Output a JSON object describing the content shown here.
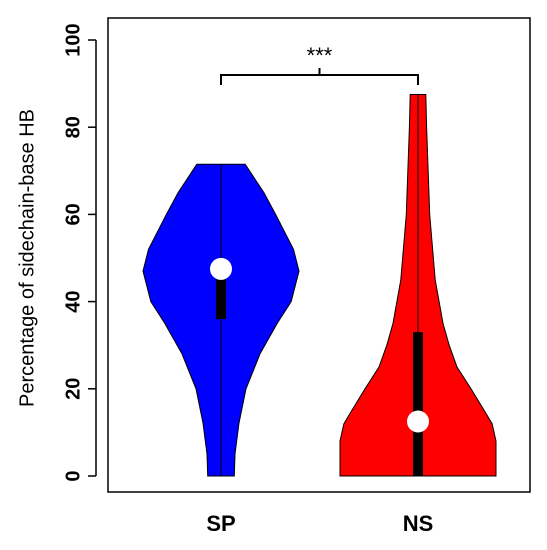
{
  "chart_data": {
    "type": "violin",
    "ylabel": "Percentage of sidechain-base HB",
    "ylim": [
      0,
      100
    ],
    "yticks": [
      0,
      20,
      40,
      60,
      80,
      100
    ],
    "categories": [
      "SP",
      "NS"
    ],
    "annotation": "***",
    "series": [
      {
        "name": "SP",
        "color": "#0000ff",
        "min": 0,
        "q1": 36,
        "median": 47.5,
        "q3": 49,
        "max": 71.5,
        "density": {
          "y": [
            0,
            5,
            12,
            20,
            28,
            35,
            40,
            47,
            52,
            60,
            65,
            71.5
          ],
          "width": [
            0.17,
            0.18,
            0.23,
            0.32,
            0.5,
            0.72,
            0.9,
            1.0,
            0.93,
            0.7,
            0.55,
            0.31
          ]
        }
      },
      {
        "name": "NS",
        "color": "#ff0000",
        "min": 0,
        "q1": 0,
        "median": 12.5,
        "q3": 33,
        "max": 87.5,
        "density": {
          "y": [
            0,
            3,
            8,
            12,
            15,
            20,
            25,
            30,
            35,
            45,
            60,
            80,
            87.5
          ],
          "width": [
            1.0,
            1.0,
            1.0,
            0.95,
            0.85,
            0.68,
            0.5,
            0.4,
            0.32,
            0.22,
            0.15,
            0.11,
            0.1
          ]
        }
      }
    ]
  }
}
